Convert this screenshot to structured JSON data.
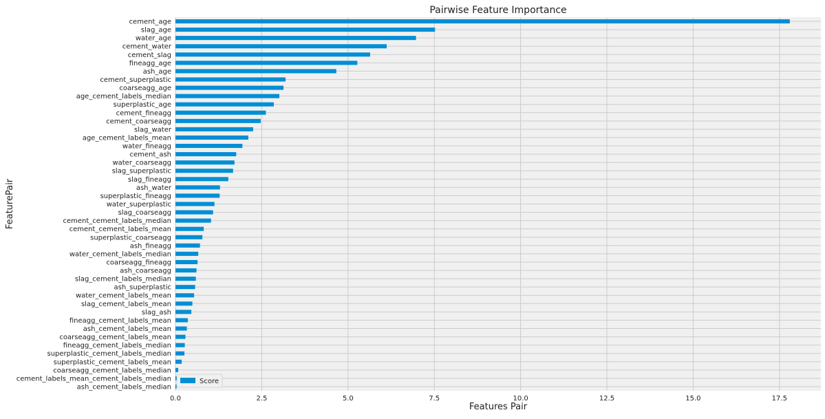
{
  "chart_data": {
    "type": "bar",
    "orientation": "horizontal",
    "title": "Pairwise Feature Importance",
    "xlabel": "Features Pair",
    "ylabel": "FeaturePair",
    "xlim": [
      0,
      18.7
    ],
    "xticks": [
      0.0,
      2.5,
      5.0,
      7.5,
      10.0,
      12.5,
      15.0,
      17.5
    ],
    "xtick_labels": [
      "0.0",
      "2.5",
      "5.0",
      "7.5",
      "10.0",
      "12.5",
      "15.0",
      "17.5"
    ],
    "grid": true,
    "legend_position": "lower-left",
    "series": [
      {
        "name": "Score",
        "color": "#008fd5",
        "categories": [
          "cement_age",
          "slag_age",
          "water_age",
          "cement_water",
          "cement_slag",
          "fineagg_age",
          "ash_age",
          "cement_superplastic",
          "coarseagg_age",
          "age_cement_labels_median",
          "superplastic_age",
          "cement_fineagg",
          "cement_coarseagg",
          "slag_water",
          "age_cement_labels_mean",
          "water_fineagg",
          "cement_ash",
          "water_coarseagg",
          "slag_superplastic",
          "slag_fineagg",
          "ash_water",
          "superplastic_fineagg",
          "water_superplastic",
          "slag_coarseagg",
          "cement_cement_labels_median",
          "cement_cement_labels_mean",
          "superplastic_coarseagg",
          "ash_fineagg",
          "water_cement_labels_median",
          "coarseagg_fineagg",
          "ash_coarseagg",
          "slag_cement_labels_median",
          "ash_superplastic",
          "water_cement_labels_mean",
          "slag_cement_labels_mean",
          "slag_ash",
          "fineagg_cement_labels_mean",
          "ash_cement_labels_mean",
          "coarseagg_cement_labels_mean",
          "fineagg_cement_labels_median",
          "superplastic_cement_labels_median",
          "superplastic_cement_labels_mean",
          "coarseagg_cement_labels_median",
          "cement_labels_mean_cement_labels_median",
          "ash_cement_labels_median"
        ],
        "values": [
          17.8,
          7.52,
          6.97,
          6.12,
          5.64,
          5.27,
          4.66,
          3.19,
          3.13,
          3.01,
          2.85,
          2.62,
          2.47,
          2.25,
          2.11,
          1.94,
          1.76,
          1.71,
          1.67,
          1.53,
          1.29,
          1.28,
          1.13,
          1.09,
          1.03,
          0.82,
          0.78,
          0.71,
          0.66,
          0.64,
          0.61,
          0.59,
          0.57,
          0.54,
          0.49,
          0.46,
          0.36,
          0.33,
          0.29,
          0.27,
          0.26,
          0.18,
          0.08,
          0.04,
          0.03
        ]
      }
    ]
  }
}
